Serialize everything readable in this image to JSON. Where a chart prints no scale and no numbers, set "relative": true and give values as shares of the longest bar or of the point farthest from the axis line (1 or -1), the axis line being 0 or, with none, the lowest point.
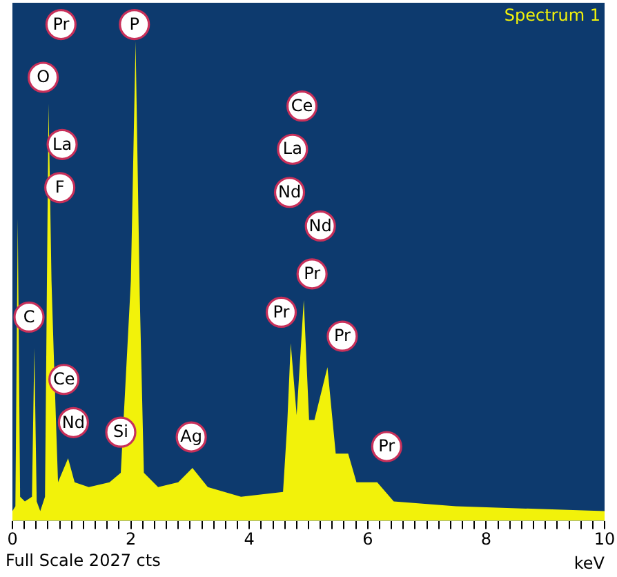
{
  "chart_data": {
    "type": "area",
    "relative": true,
    "xlabel": "keV",
    "x": [
      0,
      0.05,
      0.09,
      0.13,
      0.21,
      0.33,
      0.37,
      0.41,
      0.47,
      0.55,
      0.61,
      0.66,
      0.7,
      0.77,
      0.94,
      1.05,
      1.29,
      1.64,
      1.83,
      2.0,
      2.08,
      2.15,
      2.22,
      2.46,
      2.8,
      3.04,
      3.3,
      3.86,
      4.57,
      4.64,
      4.7,
      4.8,
      4.92,
      5.01,
      5.1,
      5.32,
      5.46,
      5.67,
      5.81,
      6.16,
      6.44,
      7.49,
      10
    ],
    "series": [
      {
        "color": "#f2f20a",
        "values": [
          0.02,
          0.03,
          0.63,
          0.05,
          0.04,
          0.05,
          0.36,
          0.04,
          0.02,
          0.05,
          0.87,
          0.5,
          0.34,
          0.08,
          0.13,
          0.08,
          0.07,
          0.08,
          0.1,
          0.5,
          1.0,
          0.47,
          0.1,
          0.07,
          0.08,
          0.11,
          0.07,
          0.05,
          0.06,
          0.2,
          0.37,
          0.22,
          0.46,
          0.21,
          0.21,
          0.32,
          0.14,
          0.14,
          0.08,
          0.08,
          0.04,
          0.03,
          0.02
        ]
      }
    ],
    "xlim": [
      0,
      10
    ],
    "xticks": [
      0,
      {
        "value": 0.2,
        "label": null
      },
      {
        "value": 0.4,
        "label": null
      },
      {
        "value": 0.6,
        "label": null
      },
      {
        "value": 0.8,
        "label": null
      },
      {
        "value": 1,
        "label": null
      },
      {
        "value": 1.2,
        "label": null
      },
      {
        "value": 1.4,
        "label": null
      },
      {
        "value": 1.6,
        "label": null
      },
      {
        "value": 1.8,
        "label": null
      },
      2,
      {
        "value": 2.2,
        "label": null
      },
      {
        "value": 2.4,
        "label": null
      },
      {
        "value": 2.6,
        "label": null
      },
      {
        "value": 2.8,
        "label": null
      },
      {
        "value": 3,
        "label": null
      },
      {
        "value": 3.2,
        "label": null
      },
      {
        "value": 3.4,
        "label": null
      },
      {
        "value": 3.6,
        "label": null
      },
      {
        "value": 3.8,
        "label": null
      },
      4,
      {
        "value": 4.2,
        "label": null
      },
      {
        "value": 4.4,
        "label": null
      },
      {
        "value": 4.6,
        "label": null
      },
      {
        "value": 4.8,
        "label": null
      },
      {
        "value": 5,
        "label": null
      },
      {
        "value": 5.2,
        "label": null
      },
      {
        "value": 5.4,
        "label": null
      },
      {
        "value": 5.6,
        "label": null
      },
      {
        "value": 5.8,
        "label": null
      },
      6,
      {
        "value": 6.2,
        "label": null
      },
      {
        "value": 6.4,
        "label": null
      },
      {
        "value": 6.6,
        "label": null
      },
      {
        "value": 6.8,
        "label": null
      },
      {
        "value": 7,
        "label": null
      },
      {
        "value": 7.2,
        "label": null
      },
      {
        "value": 7.4,
        "label": null
      },
      {
        "value": 7.6,
        "label": null
      },
      {
        "value": 7.8,
        "label": null
      },
      8,
      {
        "value": 8.2,
        "label": null
      },
      {
        "value": 8.4,
        "label": null
      },
      {
        "value": 8.6,
        "label": null
      },
      {
        "value": 8.8,
        "label": null
      },
      {
        "value": 9,
        "label": null
      },
      {
        "value": 9.2,
        "label": null
      },
      {
        "value": 9.4,
        "label": null
      },
      {
        "value": 9.6,
        "label": null
      },
      {
        "value": 9.8,
        "label": null
      },
      10
    ],
    "tick_labels": "x",
    "annotations": [
      "Spectrum 1",
      "Full Scale 2027 cts",
      "Pr",
      "O",
      "La",
      "F",
      "C",
      "Ce",
      "Nd",
      "Si",
      "P",
      "Ag",
      "Ce",
      "La",
      "Nd",
      "Nd",
      "Pr",
      "Pr",
      "Pr",
      "Pr"
    ]
  }
}
